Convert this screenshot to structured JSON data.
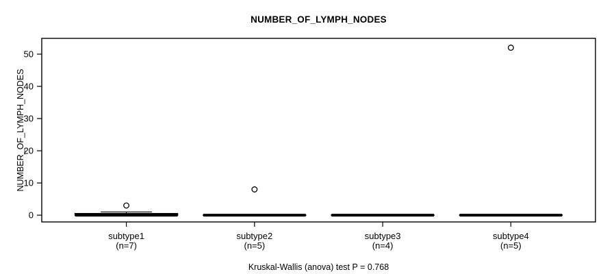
{
  "figure": {
    "title": "NUMBER_OF_LYMPH_NODES",
    "y_axis_label": "NUMBER_OF_LYMPH_NODES",
    "footer": "Kruskal-Wallis (anova) test P = 0.768",
    "background_color": "#ffffff",
    "foreground_color": "#000000"
  },
  "chart_data": {
    "type": "boxplot",
    "title": "NUMBER_OF_LYMPH_NODES",
    "xlabel": "",
    "ylabel": "NUMBER_OF_LYMPH_NODES",
    "annotation": "Kruskal-Wallis (anova) test P = 0.768",
    "statistical_test": "Kruskal-Wallis (anova)",
    "p_value": 0.768,
    "grid": false,
    "yticks": [
      0,
      10,
      20,
      30,
      40,
      50
    ],
    "ylim": [
      -2.1,
      54.9
    ],
    "groups": [
      {
        "label": "subtype1",
        "sublabel": "(n=7)",
        "n": 7,
        "whisker_low": 0,
        "q1": 0,
        "median": 0,
        "q3": 0.5,
        "whisker_high": 1,
        "outliers": [
          3
        ]
      },
      {
        "label": "subtype2",
        "sublabel": "(n=5)",
        "n": 5,
        "whisker_low": 0,
        "q1": 0,
        "median": 0,
        "q3": 0,
        "whisker_high": 0,
        "outliers": [
          8
        ]
      },
      {
        "label": "subtype3",
        "sublabel": "(n=4)",
        "n": 4,
        "whisker_low": 0,
        "q1": 0,
        "median": 0,
        "q3": 0,
        "whisker_high": 0,
        "outliers": []
      },
      {
        "label": "subtype4",
        "sublabel": "(n=5)",
        "n": 5,
        "whisker_low": 0,
        "q1": 0,
        "median": 0,
        "q3": 0,
        "whisker_high": 0,
        "outliers": [
          52
        ]
      }
    ]
  }
}
